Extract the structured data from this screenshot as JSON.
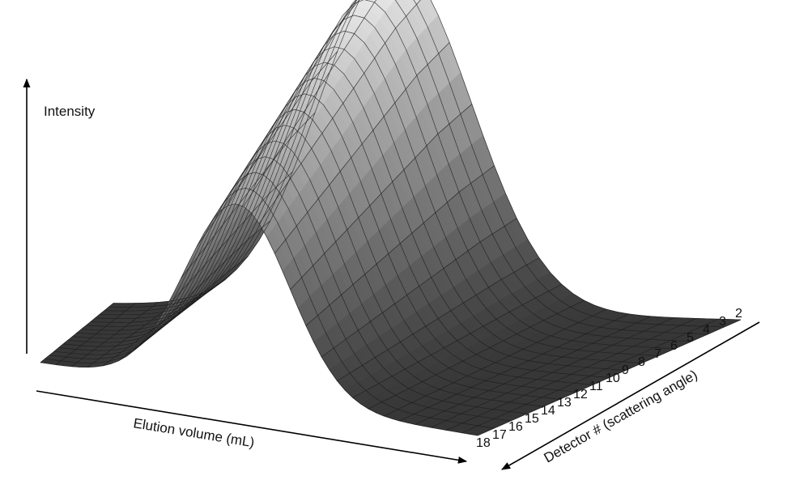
{
  "chart_data": {
    "type": "surface",
    "title": "",
    "zlabel": "Intensity",
    "xlabel": "Elution volume (mL)",
    "ylabel": "Detector # (scattering angle)",
    "x_tick_labels": [],
    "detectors": [
      "18",
      "17",
      "16",
      "15",
      "14",
      "13",
      "12",
      "11",
      "10",
      "9",
      "8",
      "7",
      "6",
      "5",
      "4",
      "3",
      "2"
    ],
    "surface": {
      "shape": "gaussian elution peak repeated across all detectors",
      "relative_peak_height_by_detector": {
        "18": 0.55,
        "17": 0.58,
        "16": 0.61,
        "15": 0.64,
        "14": 0.67,
        "13": 0.7,
        "12": 0.73,
        "11": 0.76,
        "10": 0.79,
        "9": 0.82,
        "8": 0.85,
        "7": 0.88,
        "6": 0.91,
        "5": 0.94,
        "4": 0.96,
        "3": 0.98,
        "2": 1.0
      },
      "grid_columns_along_elution": 28
    },
    "grid": false,
    "legend": "none",
    "colors": {
      "surface_light": "#f2f2f2",
      "surface_dark": "#2e2e2e",
      "mesh": "#1c1c1c",
      "axis": "#000000"
    }
  }
}
